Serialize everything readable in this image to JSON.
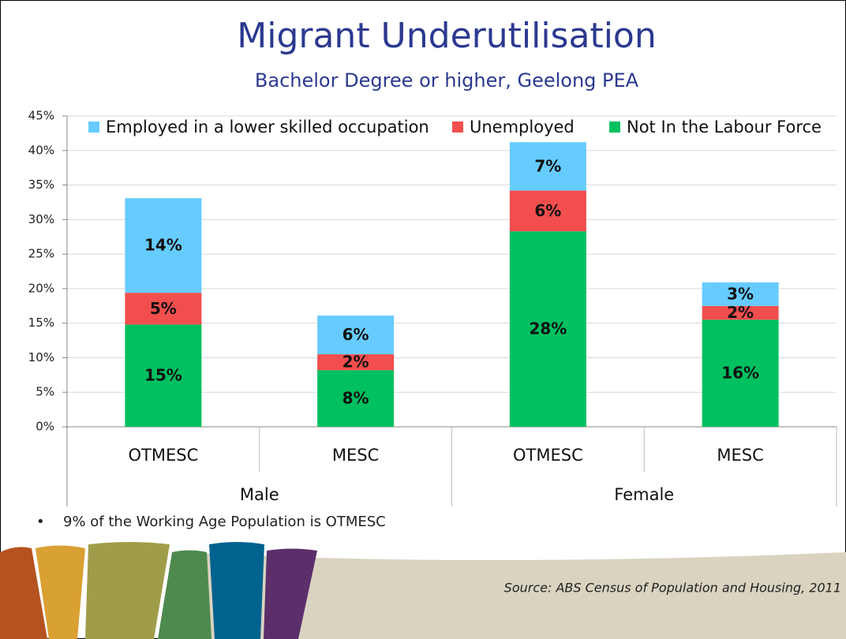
{
  "chart_data": {
    "type": "bar",
    "stacked": true,
    "title": "Migrant Underutilisation",
    "subtitle": "Bachelor Degree or higher, Geelong PEA",
    "categories": [
      "OTMESC",
      "MESC",
      "OTMESC",
      "MESC"
    ],
    "groups": [
      "Male",
      "Female"
    ],
    "series": [
      {
        "name": "Not In the Labour Force",
        "color": "#00c060",
        "values": [
          14.8,
          8.2,
          28.3,
          15.5
        ],
        "value_labels": [
          "15%",
          "8%",
          "28%",
          "16%"
        ]
      },
      {
        "name": "Unemployed",
        "color": "#f24e4e",
        "values": [
          4.6,
          2.3,
          5.9,
          2.0
        ],
        "value_labels": [
          "5%",
          "2%",
          "6%",
          "2%"
        ]
      },
      {
        "name": "Employed in a lower skilled occupation",
        "color": "#66ccff",
        "values": [
          13.7,
          5.6,
          7.0,
          3.4
        ],
        "value_labels": [
          "14%",
          "6%",
          "7%",
          "3%"
        ]
      }
    ],
    "legend_order": [
      2,
      1,
      0
    ],
    "ylim": [
      0,
      45
    ],
    "yticks": [
      {
        "value": 0,
        "label": "0%"
      },
      {
        "value": 5,
        "label": "5%"
      },
      {
        "value": 10,
        "label": "10%"
      },
      {
        "value": 15,
        "label": "15%"
      },
      {
        "value": 20,
        "label": "20%"
      },
      {
        "value": 25,
        "label": "25%"
      },
      {
        "value": 30,
        "label": "30%"
      },
      {
        "value": 35,
        "label": "35%"
      },
      {
        "value": 40,
        "label": "40%"
      },
      {
        "value": 45,
        "label": "45%"
      }
    ],
    "grid": true
  },
  "notes": [
    "9% of the Working Age Population is OTMESC"
  ],
  "source": "Source: ABS Census of Population and Housing, 2011"
}
